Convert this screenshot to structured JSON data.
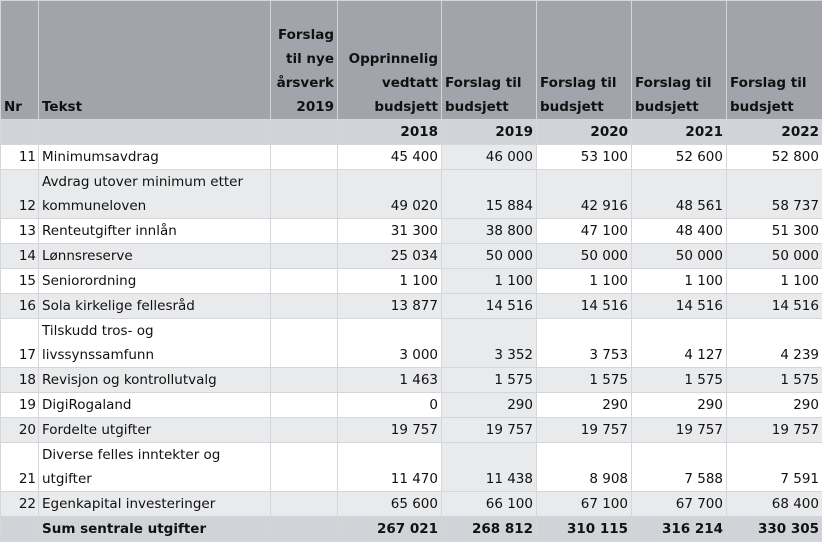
{
  "headers": {
    "nr": "Nr",
    "tekst": "Tekst",
    "c1": "Forslag til nye årsverk 2019",
    "c2": "Opprinnelig vedtatt budsjett",
    "c3": "Forslag til budsjett",
    "c4": "Forslag til budsjett",
    "c5": "Forslag til budsjett",
    "c6": "Forslag til budsjett"
  },
  "years": [
    "2018",
    "2019",
    "2020",
    "2021",
    "2022"
  ],
  "rows": [
    {
      "nr": "11",
      "text": "Minimumsavdrag",
      "v": [
        "45 400",
        "46 000",
        "53 100",
        "52 600",
        "52 800"
      ]
    },
    {
      "nr": "12",
      "text": "Avdrag utover minimum etter kommuneloven",
      "v": [
        "49 020",
        "15 884",
        "42 916",
        "48 561",
        "58 737"
      ]
    },
    {
      "nr": "13",
      "text": "Renteutgifter innlån",
      "v": [
        "31 300",
        "38 800",
        "47 100",
        "48 400",
        "51 300"
      ]
    },
    {
      "nr": "14",
      "text": "Lønnsreserve",
      "v": [
        "25 034",
        "50 000",
        "50 000",
        "50 000",
        "50 000"
      ]
    },
    {
      "nr": "15",
      "text": "Seniorordning",
      "v": [
        "1 100",
        "1 100",
        "1 100",
        "1 100",
        "1 100"
      ]
    },
    {
      "nr": "16",
      "text": "Sola kirkelige fellesråd",
      "v": [
        "13 877",
        "14 516",
        "14 516",
        "14 516",
        "14 516"
      ]
    },
    {
      "nr": "17",
      "text": "Tilskudd tros- og livssynssamfunn",
      "v": [
        "3 000",
        "3 352",
        "3 753",
        "4 127",
        "4 239"
      ]
    },
    {
      "nr": "18",
      "text": "Revisjon og kontrollutvalg",
      "v": [
        "1 463",
        "1 575",
        "1 575",
        "1 575",
        "1 575"
      ]
    },
    {
      "nr": "19",
      "text": "DigiRogaland",
      "v": [
        "0",
        "290",
        "290",
        "290",
        "290"
      ]
    },
    {
      "nr": "20",
      "text": "Fordelte utgifter",
      "v": [
        "19 757",
        "19 757",
        "19 757",
        "19 757",
        "19 757"
      ]
    },
    {
      "nr": "21",
      "text": "Diverse felles inntekter og utgifter",
      "v": [
        "11 470",
        "11 438",
        "8 908",
        "7 588",
        "7 591"
      ]
    },
    {
      "nr": "22",
      "text": "Egenkapital investeringer",
      "v": [
        "65 600",
        "66 100",
        "67 100",
        "67 700",
        "68 400"
      ]
    }
  ],
  "sum": {
    "text": "Sum sentrale utgifter",
    "v": [
      "267 021",
      "268 812",
      "310 115",
      "316 214",
      "330 305"
    ]
  }
}
